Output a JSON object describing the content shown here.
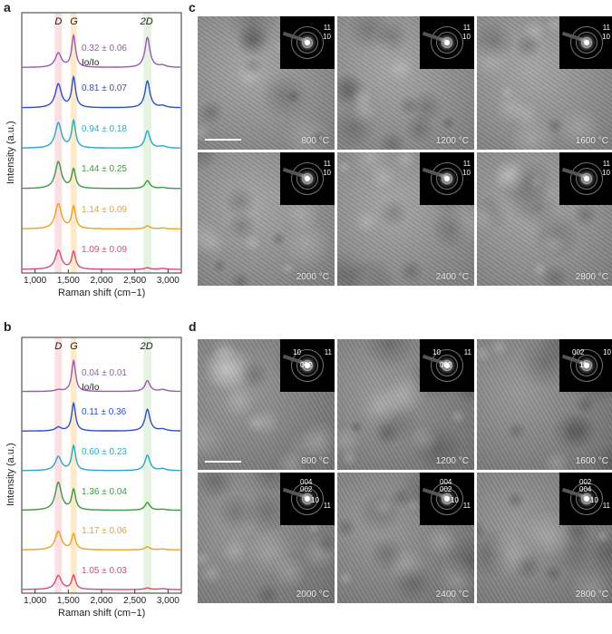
{
  "panels": {
    "a": "a",
    "b": "b",
    "c": "c",
    "d": "d"
  },
  "chart_data": [
    {
      "type": "line",
      "panel": "a",
      "xlabel": "Raman shift (cm−1)",
      "ylabel": "Intensity (a.u.)",
      "xlim": [
        800,
        3200
      ],
      "x_ticks": [
        "1,000",
        "1,500",
        "2,000",
        "2,500",
        "3,000"
      ],
      "bands": [
        "D",
        "G",
        "2D"
      ],
      "band_centers": [
        1350,
        1580,
        2690
      ],
      "ratio_header": "Io/Io",
      "series": [
        {
          "ratio": "0.32 ± 0.06",
          "color": "#9b59b6",
          "peaks": [
            [
              1350,
              0.45
            ],
            [
              1580,
              1.0
            ],
            [
              2690,
              0.95
            ]
          ]
        },
        {
          "ratio": "0.81 ± 0.07",
          "color": "#2e4fc7",
          "peaks": [
            [
              1350,
              0.75
            ],
            [
              1580,
              0.95
            ],
            [
              2690,
              0.85
            ]
          ]
        },
        {
          "ratio": "0.94 ± 0.18",
          "color": "#27aac9",
          "peaks": [
            [
              1350,
              0.8
            ],
            [
              1580,
              0.85
            ],
            [
              2690,
              0.55
            ]
          ]
        },
        {
          "ratio": "1.44 ± 0.25",
          "color": "#3a9a45",
          "peaks": [
            [
              1350,
              0.85
            ],
            [
              1580,
              0.6
            ],
            [
              2690,
              0.25
            ]
          ]
        },
        {
          "ratio": "1.14 ± 0.09",
          "color": "#f0a020",
          "peaks": [
            [
              1350,
              0.8
            ],
            [
              1580,
              0.7
            ],
            [
              2690,
              0.1
            ]
          ]
        },
        {
          "ratio": "1.09 ± 0.09",
          "color": "#e0457a",
          "peaks": [
            [
              1350,
              0.6
            ],
            [
              1580,
              0.55
            ],
            [
              2690,
              0.05
            ]
          ]
        }
      ]
    },
    {
      "type": "line",
      "panel": "b",
      "xlabel": "Raman shift (cm−1)",
      "ylabel": "Intensity (a.u.)",
      "xlim": [
        800,
        3200
      ],
      "x_ticks": [
        "1,000",
        "1,500",
        "2,000",
        "2,500",
        "3,000"
      ],
      "bands": [
        "D",
        "G",
        "2D"
      ],
      "band_centers": [
        1350,
        1580,
        2690
      ],
      "ratio_header": "Io/Io",
      "series": [
        {
          "ratio": "0.04 ± 0.01",
          "color": "#9b59b6",
          "peaks": [
            [
              1350,
              0.05
            ],
            [
              1580,
              1.0
            ],
            [
              2690,
              0.35
            ]
          ]
        },
        {
          "ratio": "0.11 ± 0.36",
          "color": "#2e4fc7",
          "peaks": [
            [
              1350,
              0.12
            ],
            [
              1580,
              0.9
            ],
            [
              2690,
              0.7
            ]
          ]
        },
        {
          "ratio": "0.60 ± 0.23",
          "color": "#27aac9",
          "peaks": [
            [
              1350,
              0.45
            ],
            [
              1580,
              0.8
            ],
            [
              2690,
              0.5
            ]
          ]
        },
        {
          "ratio": "1.36 ± 0.04",
          "color": "#3a9a45",
          "peaks": [
            [
              1350,
              0.9
            ],
            [
              1580,
              0.65
            ],
            [
              2690,
              0.25
            ]
          ]
        },
        {
          "ratio": "1.17 ± 0.06",
          "color": "#f0a020",
          "peaks": [
            [
              1350,
              0.6
            ],
            [
              1580,
              0.5
            ],
            [
              2690,
              0.1
            ]
          ]
        },
        {
          "ratio": "1.05 ± 0.03",
          "color": "#e0457a",
          "peaks": [
            [
              1350,
              0.45
            ],
            [
              1580,
              0.45
            ],
            [
              2690,
              0.05
            ]
          ]
        }
      ]
    }
  ],
  "tem_c": [
    {
      "temp": "800 °C",
      "idx": [
        "11",
        "10"
      ]
    },
    {
      "temp": "1200 °C",
      "idx": [
        "11",
        "10"
      ]
    },
    {
      "temp": "1600 °C",
      "idx": [
        "11",
        "10"
      ]
    },
    {
      "temp": "2000 °C",
      "idx": [
        "11",
        "10"
      ]
    },
    {
      "temp": "2400 °C",
      "idx": [
        "11",
        "10"
      ]
    },
    {
      "temp": "2800 °C",
      "idx": [
        "11",
        "10"
      ]
    }
  ],
  "tem_d": [
    {
      "temp": "800 °C",
      "idx": [
        "10",
        "11",
        "002"
      ]
    },
    {
      "temp": "1200 °C",
      "idx": [
        "10",
        "11",
        "002"
      ]
    },
    {
      "temp": "1600 °C",
      "idx": [
        "002",
        "10",
        "11"
      ]
    },
    {
      "temp": "2000 °C",
      "idx": [
        "004",
        "002",
        "10",
        "11"
      ]
    },
    {
      "temp": "2400 °C",
      "idx": [
        "004",
        "002",
        "10",
        "11"
      ]
    },
    {
      "temp": "2800 °C",
      "idx": [
        "002",
        "004",
        "10",
        "11"
      ]
    }
  ]
}
